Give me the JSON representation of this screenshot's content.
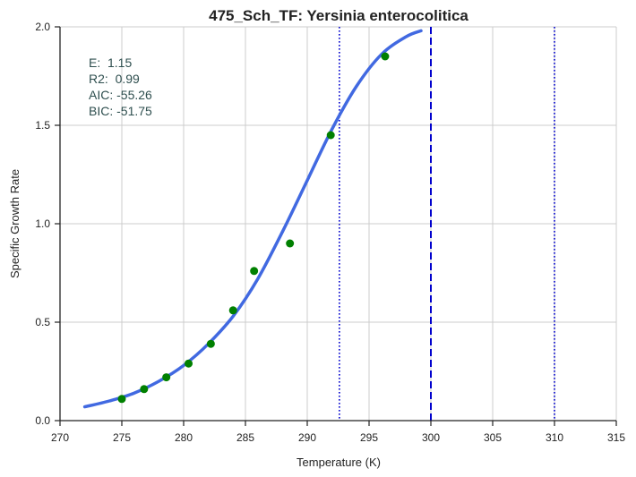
{
  "chart_data": {
    "type": "scatter",
    "title": "475_Sch_TF: Yersinia enterocolitica",
    "xlabel": "Temperature (K)",
    "ylabel": "Specific Growth Rate",
    "xlim": [
      270,
      315
    ],
    "ylim": [
      0,
      2.0
    ],
    "xticks": [
      270,
      275,
      280,
      285,
      290,
      295,
      300,
      305,
      310,
      315
    ],
    "yticks": [
      0.0,
      0.5,
      1.0,
      1.5,
      2.0
    ],
    "x_tick_labels": [
      "270",
      "275",
      "280",
      "285",
      "290",
      "295",
      "300",
      "305",
      "310",
      "315"
    ],
    "y_tick_labels": [
      "0.0",
      "0.5",
      "1.0",
      "1.5",
      "2.0"
    ],
    "grid": true,
    "colors": {
      "points": "#008000",
      "fit_line": "#4169e1",
      "vlines": "#0000cd",
      "annotation": "#2f4f4f"
    },
    "series": [
      {
        "kind": "points",
        "x": [
          275.0,
          276.8,
          278.6,
          280.4,
          282.2,
          284.0,
          285.7,
          288.6,
          291.9,
          296.3
        ],
        "y": [
          0.11,
          0.16,
          0.22,
          0.29,
          0.39,
          0.56,
          0.76,
          0.9,
          1.45,
          1.85
        ]
      },
      {
        "kind": "fit_curve",
        "x": [
          272.0,
          274.0,
          276.0,
          278.0,
          280.0,
          282.0,
          284.0,
          286.0,
          288.0,
          290.0,
          292.0,
          294.0,
          296.0,
          298.0,
          299.2
        ],
        "y": [
          0.07,
          0.1,
          0.14,
          0.2,
          0.28,
          0.39,
          0.53,
          0.72,
          0.96,
          1.22,
          1.48,
          1.7,
          1.86,
          1.95,
          1.98
        ]
      }
    ],
    "vertical_lines": [
      {
        "x": 292.6,
        "style": "dotted"
      },
      {
        "x": 300.0,
        "style": "dashed"
      },
      {
        "x": 310.0,
        "style": "dotted"
      }
    ],
    "annotations": [
      "E:  1.15",
      "R2:  0.99",
      "AIC: -55.26",
      "BIC: -51.75"
    ]
  }
}
